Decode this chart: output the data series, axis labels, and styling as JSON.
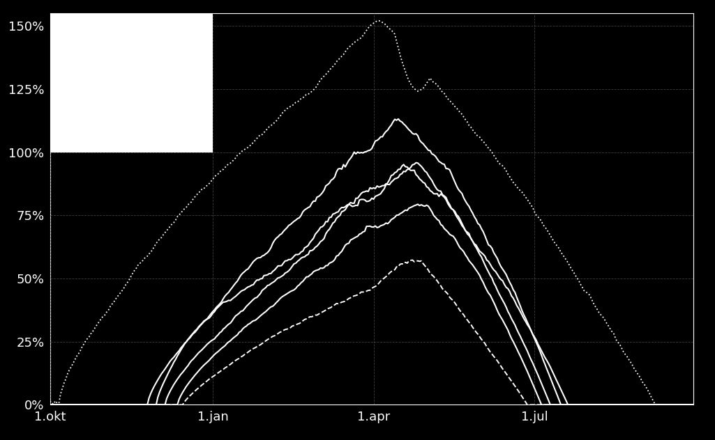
{
  "background_color": "#000000",
  "text_color": "#ffffff",
  "grid_color": "#666666",
  "spine_color": "#ffffff",
  "tick_color": "#ffffff",
  "ylim": [
    0,
    1.55
  ],
  "yticks": [
    0.0,
    0.25,
    0.5,
    0.75,
    1.0,
    1.25,
    1.5
  ],
  "ytick_labels": [
    "0%",
    "25%",
    "50%",
    "75%",
    "100%",
    "125%",
    "150%"
  ],
  "xtick_labels": [
    "1.okt",
    "1.jan",
    "1.apr",
    "1.jul"
  ],
  "xtick_positions": [
    0,
    92,
    183,
    274
  ],
  "n_days": 365,
  "figsize": [
    10.25,
    6.32
  ],
  "dpi": 100
}
